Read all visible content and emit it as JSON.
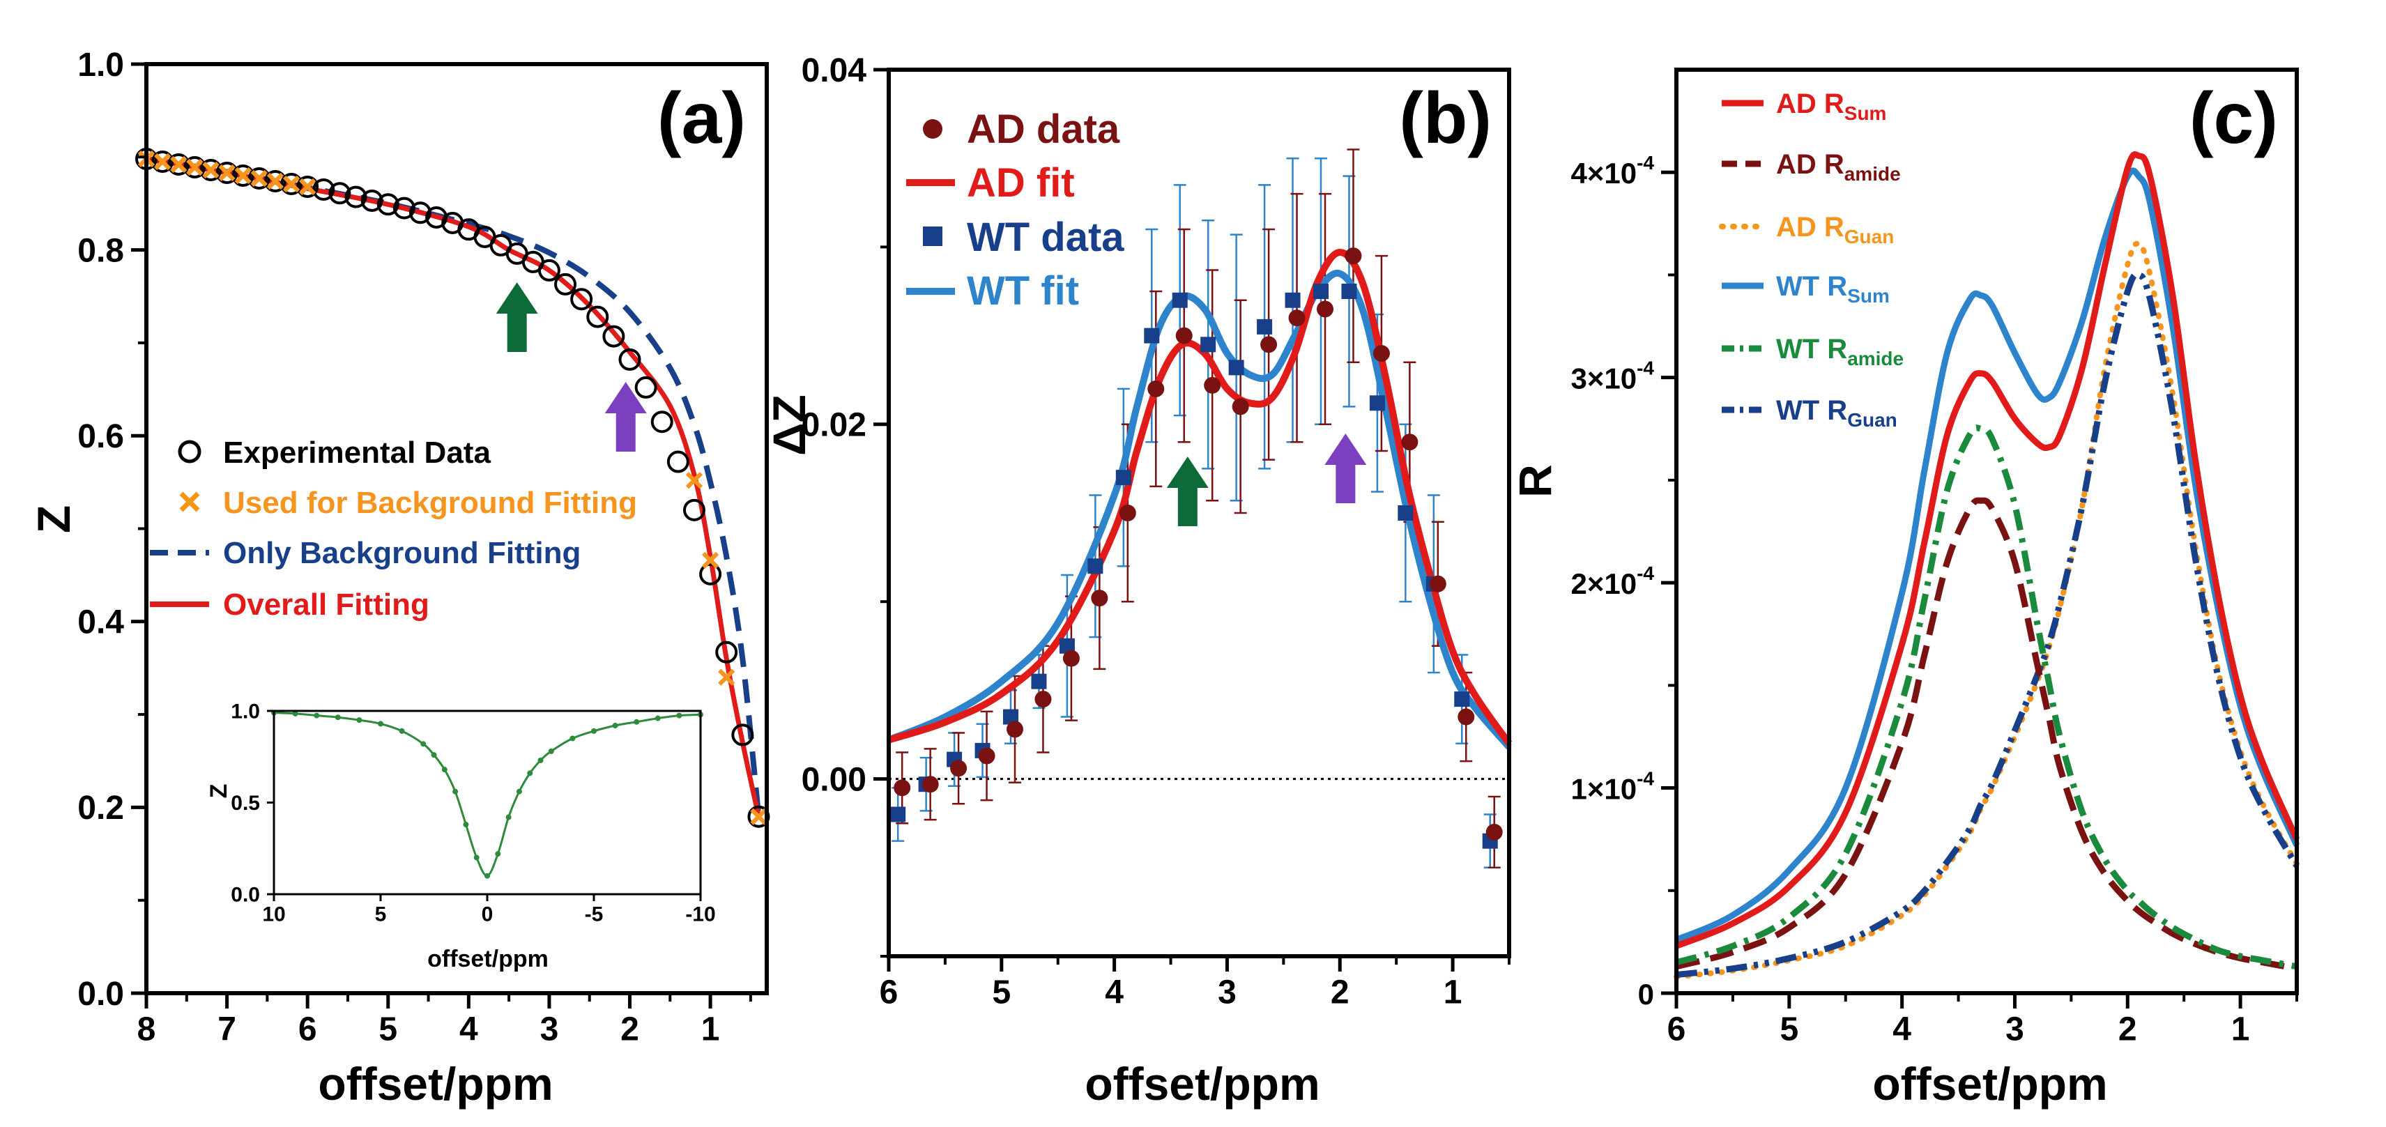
{
  "colors": {
    "black": "#000000",
    "red": "#e11a1a",
    "darkred": "#7a1212",
    "orange": "#f7941d",
    "navy": "#173f8a",
    "blue": "#2d84cc",
    "green": "#1a8a3c",
    "arrow_green": "#0d6b3a",
    "arrow_purple": "#7b3fbf",
    "inset_green": "#2e8b3c"
  },
  "chart_data": [
    {
      "id": "a",
      "panel_label": "(a)",
      "type": "scatter",
      "xlabel": "offset/ppm",
      "ylabel": "Z",
      "xlim": [
        8,
        0.3
      ],
      "ylim": [
        0,
        1
      ],
      "xticks": [
        "8",
        "7",
        "6",
        "5",
        "4",
        "3",
        "2",
        "1"
      ],
      "yticks": [
        "0.0",
        "0.2",
        "0.4",
        "0.6",
        "0.8",
        "1.0"
      ],
      "legend": [
        {
          "label": "Experimental Data",
          "style": "open-circle",
          "color": "#000000"
        },
        {
          "label": "Used for Background Fitting",
          "style": "x-marker",
          "color": "#f7941d"
        },
        {
          "label": "Only Background Fitting",
          "style": "dashed",
          "color": "#173f8a"
        },
        {
          "label": "Overall Fitting",
          "style": "solid",
          "color": "#e11a1a"
        }
      ],
      "experimental_x": [
        8.0,
        7.8,
        7.6,
        7.4,
        7.2,
        7.0,
        6.8,
        6.6,
        6.4,
        6.2,
        6.0,
        5.8,
        5.6,
        5.4,
        5.2,
        5.0,
        4.8,
        4.6,
        4.4,
        4.2,
        4.0,
        3.8,
        3.6,
        3.4,
        3.2,
        3.0,
        2.8,
        2.6,
        2.4,
        2.2,
        2.0,
        1.8,
        1.6,
        1.4,
        1.2,
        1.0,
        0.8,
        0.6,
        0.4
      ],
      "experimental_y": [
        0.898,
        0.895,
        0.892,
        0.889,
        0.886,
        0.883,
        0.88,
        0.877,
        0.874,
        0.871,
        0.868,
        0.865,
        0.861,
        0.857,
        0.853,
        0.849,
        0.845,
        0.84,
        0.835,
        0.829,
        0.822,
        0.814,
        0.805,
        0.796,
        0.787,
        0.778,
        0.763,
        0.747,
        0.728,
        0.707,
        0.682,
        0.652,
        0.615,
        0.572,
        0.52,
        0.451,
        0.367,
        0.278,
        0.19
      ],
      "background_points_x": [
        8.0,
        7.8,
        7.6,
        7.4,
        7.2,
        7.0,
        6.8,
        6.6,
        6.4,
        6.2,
        6.0,
        1.2,
        1.0,
        0.8,
        0.4
      ],
      "background_points_y": [
        0.898,
        0.895,
        0.892,
        0.889,
        0.886,
        0.883,
        0.88,
        0.877,
        0.874,
        0.871,
        0.868,
        0.552,
        0.466,
        0.34,
        0.19
      ],
      "background_fit_x": [
        8.0,
        7.0,
        6.0,
        5.0,
        4.0,
        3.5,
        3.0,
        2.5,
        2.0,
        1.5,
        1.2,
        1.0,
        0.8,
        0.6,
        0.4
      ],
      "background_fit_y": [
        0.898,
        0.884,
        0.867,
        0.85,
        0.828,
        0.815,
        0.797,
        0.771,
        0.733,
        0.673,
        0.612,
        0.55,
        0.47,
        0.36,
        0.19
      ],
      "overall_fit_x": [
        8.0,
        7.0,
        6.0,
        5.0,
        4.0,
        3.5,
        3.0,
        2.5,
        2.0,
        1.5,
        1.2,
        1.0,
        0.8,
        0.6,
        0.4
      ],
      "overall_fit_y": [
        0.898,
        0.883,
        0.866,
        0.849,
        0.825,
        0.8,
        0.778,
        0.74,
        0.69,
        0.632,
        0.558,
        0.47,
        0.36,
        0.27,
        0.19
      ],
      "arrows": [
        {
          "x": 3.4,
          "color": "arrow_green"
        },
        {
          "x": 2.05,
          "color": "arrow_purple"
        }
      ],
      "inset": {
        "type": "line",
        "xlabel": "offset/ppm",
        "ylabel": "Z",
        "xlim": [
          10,
          -10
        ],
        "ylim": [
          0,
          1
        ],
        "xticks": [
          "10",
          "5",
          "0",
          "-5",
          "-10"
        ],
        "yticks": [
          "0.0",
          "0.5",
          "1.0"
        ],
        "x": [
          10,
          9,
          8,
          7,
          6,
          5,
          4,
          3,
          2.5,
          2,
          1.5,
          1,
          0.5,
          0,
          -0.5,
          -1,
          -1.5,
          -2,
          -2.5,
          -3,
          -4,
          -5,
          -6,
          -7,
          -8,
          -9,
          -10
        ],
        "y": [
          0.99,
          0.985,
          0.975,
          0.965,
          0.95,
          0.93,
          0.89,
          0.82,
          0.76,
          0.68,
          0.56,
          0.38,
          0.2,
          0.1,
          0.22,
          0.42,
          0.56,
          0.66,
          0.73,
          0.78,
          0.85,
          0.89,
          0.92,
          0.94,
          0.96,
          0.975,
          0.98
        ]
      }
    },
    {
      "id": "b",
      "panel_label": "(b)",
      "type": "scatter",
      "xlabel": "offset/ppm",
      "ylabel": "ΔZ",
      "xlim": [
        6,
        0.5
      ],
      "ylim": [
        -0.01,
        0.04
      ],
      "xticks": [
        "6",
        "5",
        "4",
        "3",
        "2",
        "1"
      ],
      "yticks": [
        "0.00",
        "0.02",
        "0.04"
      ],
      "legend": [
        {
          "label": "AD data",
          "style": "filled-circle",
          "color": "#7a1212"
        },
        {
          "label": "AD fit",
          "style": "solid",
          "color": "#e11a1a"
        },
        {
          "label": "WT data",
          "style": "filled-square",
          "color": "#173f8a"
        },
        {
          "label": "WT fit",
          "style": "solid",
          "color": "#2d84cc"
        }
      ],
      "ad_data_x": [
        5.9,
        5.65,
        5.4,
        5.15,
        4.9,
        4.65,
        4.4,
        4.15,
        3.9,
        3.65,
        3.4,
        3.15,
        2.9,
        2.65,
        2.4,
        2.15,
        1.9,
        1.65,
        1.4,
        1.15,
        0.9,
        0.65
      ],
      "ad_data_y": [
        -0.0005,
        -0.0003,
        0.0006,
        0.0013,
        0.0028,
        0.0045,
        0.0068,
        0.0102,
        0.015,
        0.022,
        0.025,
        0.0222,
        0.021,
        0.0245,
        0.026,
        0.0265,
        0.0295,
        0.024,
        0.019,
        0.011,
        0.0035,
        -0.003
      ],
      "ad_err": [
        0.002,
        0.002,
        0.002,
        0.0025,
        0.003,
        0.003,
        0.0035,
        0.004,
        0.005,
        0.0055,
        0.006,
        0.0065,
        0.006,
        0.0065,
        0.007,
        0.0065,
        0.006,
        0.0055,
        0.0045,
        0.0035,
        0.0025,
        0.002
      ],
      "wt_data_x": [
        5.9,
        5.65,
        5.4,
        5.15,
        4.9,
        4.65,
        4.4,
        4.15,
        3.9,
        3.65,
        3.4,
        3.15,
        2.9,
        2.65,
        2.4,
        2.15,
        1.9,
        1.65,
        1.4,
        1.15,
        0.9,
        0.65
      ],
      "wt_data_y": [
        -0.002,
        -0.0003,
        0.0011,
        0.0016,
        0.0035,
        0.0055,
        0.0075,
        0.012,
        0.017,
        0.025,
        0.027,
        0.0245,
        0.0232,
        0.0255,
        0.027,
        0.0275,
        0.0275,
        0.0212,
        0.015,
        0.011,
        0.0045,
        -0.0035
      ],
      "wt_err": [
        0.0015,
        0.0015,
        0.0015,
        0.0015,
        0.0015,
        0.0015,
        0.004,
        0.004,
        0.005,
        0.006,
        0.0065,
        0.007,
        0.0075,
        0.008,
        0.008,
        0.0075,
        0.0065,
        0.005,
        0.005,
        0.005,
        0.0025,
        0.0015
      ],
      "ad_fit_x": [
        6.0,
        5.5,
        5.0,
        4.5,
        4.0,
        3.8,
        3.6,
        3.4,
        3.2,
        3.0,
        2.8,
        2.6,
        2.4,
        2.2,
        2.0,
        1.8,
        1.6,
        1.4,
        1.2,
        1.0,
        0.8,
        0.5
      ],
      "ad_fit_y": [
        0.0022,
        0.0032,
        0.0048,
        0.0078,
        0.014,
        0.0185,
        0.0225,
        0.0245,
        0.024,
        0.022,
        0.0212,
        0.0215,
        0.024,
        0.028,
        0.0297,
        0.028,
        0.0228,
        0.0165,
        0.0115,
        0.0072,
        0.0047,
        0.002
      ],
      "wt_fit_x": [
        6.0,
        5.5,
        5.0,
        4.5,
        4.0,
        3.8,
        3.6,
        3.4,
        3.2,
        3.0,
        2.8,
        2.6,
        2.4,
        2.2,
        2.0,
        1.8,
        1.6,
        1.4,
        1.2,
        1.0,
        0.8,
        0.5
      ],
      "wt_fit_y": [
        0.0022,
        0.0035,
        0.0055,
        0.0088,
        0.016,
        0.021,
        0.0255,
        0.0272,
        0.0265,
        0.024,
        0.0228,
        0.0228,
        0.025,
        0.0275,
        0.0285,
        0.0265,
        0.021,
        0.015,
        0.01,
        0.006,
        0.004,
        0.0018
      ],
      "zero_line": 0,
      "arrows": [
        {
          "x": 3.35,
          "color": "arrow_green"
        },
        {
          "x": 1.95,
          "color": "arrow_purple"
        }
      ]
    },
    {
      "id": "c",
      "panel_label": "(c)",
      "type": "line",
      "xlabel": "offset/ppm",
      "ylabel": "R",
      "xlim": [
        6,
        0.5
      ],
      "ylim": [
        0,
        0.00045
      ],
      "xticks": [
        "6",
        "5",
        "4",
        "3",
        "2",
        "1"
      ],
      "ytick_values": [
        0,
        0.0001,
        0.0002,
        0.0003,
        0.0004
      ],
      "ytick_mantissa": [
        "0",
        "1×10",
        "2×10",
        "3×10",
        "4×10"
      ],
      "ytick_exponent": [
        "",
        "-4",
        "-4",
        "-4",
        "-4"
      ],
      "x": [
        6.0,
        5.5,
        5.0,
        4.5,
        4.0,
        3.8,
        3.6,
        3.4,
        3.3,
        3.2,
        3.0,
        2.8,
        2.7,
        2.6,
        2.4,
        2.2,
        2.0,
        1.9,
        1.8,
        1.6,
        1.4,
        1.2,
        1.0,
        0.8,
        0.5
      ],
      "series": [
        {
          "name": "AD R",
          "sub": "Sum",
          "color": "#e11a1a",
          "dash": "solid",
          "values": [
            2.3e-05,
            3.4e-05,
            5.2e-05,
            8.8e-05,
            0.00017,
            0.00022,
            0.000272,
            0.000298,
            0.000302,
            0.000298,
            0.00028,
            0.000268,
            0.000266,
            0.000272,
            0.000305,
            0.000355,
            0.000402,
            0.000408,
            0.000398,
            0.00034,
            0.00026,
            0.000195,
            0.000145,
            0.000112,
            7.5e-05
          ]
        },
        {
          "name": "AD R",
          "sub": "amide",
          "color": "#7a1212",
          "dash": "longdash",
          "values": [
            1.3e-05,
            2e-05,
            3.2e-05,
            5.8e-05,
            0.000122,
            0.000165,
            0.00021,
            0.000236,
            0.00024,
            0.000236,
            0.00021,
            0.00016,
            0.000135,
            0.00011,
            7.8e-05,
            5.8e-05,
            4.5e-05,
            4e-05,
            3.6e-05,
            2.9e-05,
            2.4e-05,
            2e-05,
            1.7e-05,
            1.5e-05,
            1.2e-05
          ]
        },
        {
          "name": "AD R",
          "sub": "Guan",
          "color": "#f7941d",
          "dash": "dotted",
          "values": [
            8e-06,
            1.1e-05,
            1.6e-05,
            2.3e-05,
            3.8e-05,
            4.8e-05,
            6.2e-05,
            7.8e-05,
            9e-05,
            0.0001,
            0.000125,
            0.000152,
            0.000168,
            0.000188,
            0.000238,
            0.000305,
            0.000355,
            0.000365,
            0.00035,
            0.000292,
            0.000218,
            0.000158,
            0.000118,
            9.2e-05,
            6.3e-05
          ]
        },
        {
          "name": "WT R",
          "sub": "Sum",
          "color": "#2d84cc",
          "dash": "solid",
          "values": [
            2.6e-05,
            3.8e-05,
            6e-05,
            0.0001,
            0.000195,
            0.000255,
            0.000312,
            0.000338,
            0.00034,
            0.000335,
            0.000312,
            0.000292,
            0.00029,
            0.000298,
            0.000328,
            0.000368,
            0.000398,
            0.000398,
            0.000385,
            0.000325,
            0.000248,
            0.000188,
            0.00014,
            0.000108,
            7.2e-05
          ]
        },
        {
          "name": "WT R",
          "sub": "amide",
          "color": "#1a8a3c",
          "dash": "dashdot",
          "values": [
            1.5e-05,
            2.3e-05,
            3.7e-05,
            6.8e-05,
            0.000142,
            0.000192,
            0.000245,
            0.000272,
            0.000275,
            0.00027,
            0.000238,
            0.00018,
            0.000152,
            0.000125,
            8.8e-05,
            6.5e-05,
            5e-05,
            4.5e-05,
            4e-05,
            3.2e-05,
            2.6e-05,
            2.1e-05,
            1.8e-05,
            1.6e-05,
            1.3e-05
          ]
        },
        {
          "name": "WT R",
          "sub": "Guan",
          "color": "#173f8a",
          "dash": "dashdotdot",
          "values": [
            9e-06,
            1.2e-05,
            1.7e-05,
            2.5e-05,
            4e-05,
            5e-05,
            6.4e-05,
            8e-05,
            9.2e-05,
            0.000102,
            0.000128,
            0.000155,
            0.00017,
            0.00019,
            0.000238,
            0.000298,
            0.000342,
            0.00035,
            0.000338,
            0.000283,
            0.000212,
            0.000155,
            0.000115,
            9e-05,
            6.2e-05
          ]
        }
      ]
    }
  ]
}
